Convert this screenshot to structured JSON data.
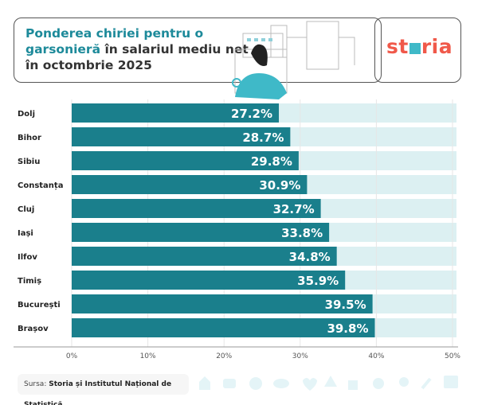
{
  "header": {
    "title_highlight": "Ponderea chiriei pentru o garsonieră",
    "title_rest": " în salariul mediu net în octombrie 2025",
    "logo": "storia"
  },
  "source": {
    "label": "Sursa:",
    "value": "Storia și Institutul Național de Statistică"
  },
  "colors": {
    "bar": "#1a7f8c",
    "track": "#dcf0f2",
    "title_highlight": "#1d8a9a",
    "logo": "#f0594a"
  },
  "chart_data": {
    "type": "bar",
    "orientation": "horizontal",
    "categories": [
      "Dolj",
      "Bihor",
      "Sibiu",
      "Constanța",
      "Cluj",
      "Iași",
      "Ilfov",
      "Timiș",
      "București",
      "Brașov"
    ],
    "values": [
      27.2,
      28.7,
      29.8,
      30.9,
      32.7,
      33.8,
      34.8,
      35.9,
      39.5,
      39.8
    ],
    "data_labels": [
      "27.2%",
      "28.7%",
      "29.8%",
      "30.9%",
      "32.7%",
      "33.8%",
      "34.8%",
      "35.9%",
      "39.5%",
      "39.8%"
    ],
    "xlim": [
      0,
      50
    ],
    "x_ticks": [
      "0%",
      "10%",
      "20%",
      "30%",
      "40%",
      "50%"
    ],
    "grid": true
  }
}
